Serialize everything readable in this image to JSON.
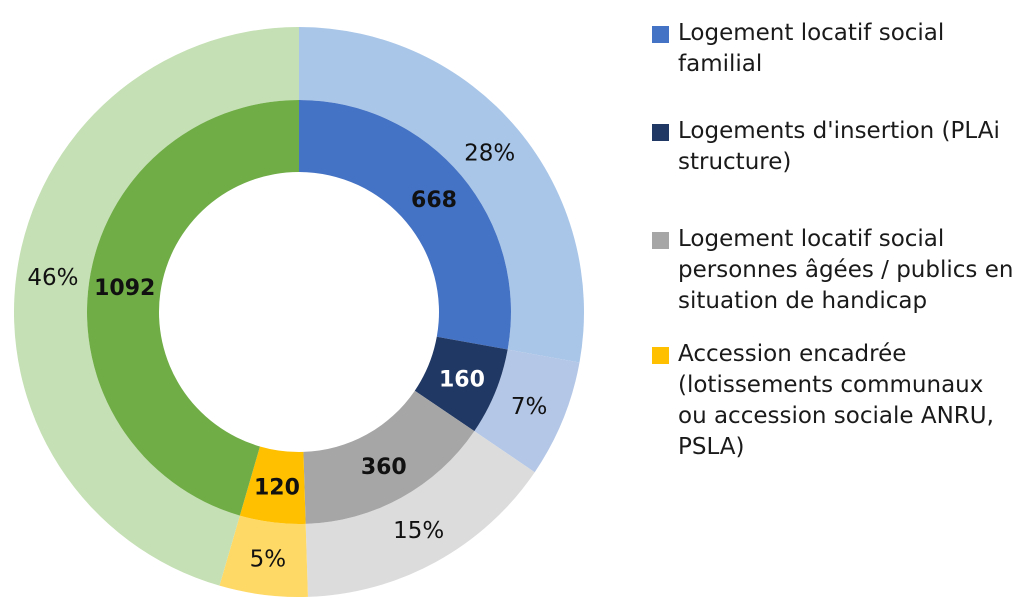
{
  "chart_data": {
    "type": "pie",
    "variant": "double-donut",
    "segments": [
      {
        "name": "Logement locatif social familial",
        "value": 668,
        "percent_label": "28%",
        "inner_color": "#4472C4",
        "outer_color": "#A9C6E8"
      },
      {
        "name": "Logements d'insertion (PLAi structure)",
        "value": 160,
        "percent_label": "7%",
        "inner_color": "#203864",
        "outer_color": "#B4C7E7"
      },
      {
        "name": "Logement locatif social personnes âgées / publics en situation de handicap",
        "value": 360,
        "percent_label": "15%",
        "inner_color": "#A6A6A6",
        "outer_color": "#DCDCDC"
      },
      {
        "name": "Accession encadrée (lotissements communaux ou accession sociale ANRU, PSLA)",
        "value": 120,
        "percent_label": "5%",
        "inner_color": "#FFC000",
        "outer_color": "#FFD966"
      },
      {
        "name": "",
        "value": 1092,
        "percent_label": "46%",
        "inner_color": "#70AD47",
        "outer_color": "#C5E0B4"
      }
    ],
    "legend_position": "right"
  },
  "legend": [
    {
      "label": "Logement locatif social familial",
      "color": "#4472C4"
    },
    {
      "label": "Logements d'insertion (PLAi structure)",
      "color": "#203864"
    },
    {
      "label": "Logement locatif social personnes âgées / publics en situation de handicap",
      "color": "#A6A6A6"
    },
    {
      "label": "Accession encadrée (lotissements communaux ou accession sociale ANRU, PSLA)",
      "color": "#FFC000"
    }
  ]
}
